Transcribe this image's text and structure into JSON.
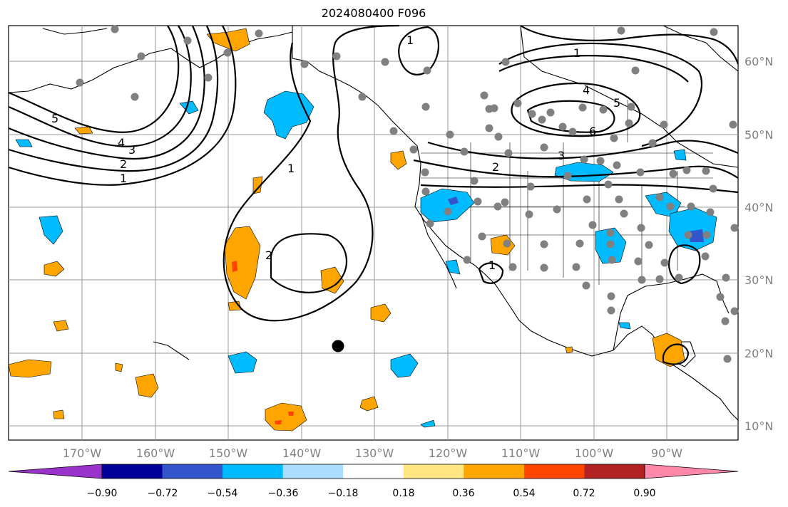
{
  "title": "2024080400 F096",
  "map": {
    "lon_ticks": [
      "170°W",
      "160°W",
      "150°W",
      "140°W",
      "130°W",
      "120°W",
      "110°W",
      "100°W",
      "90°W"
    ],
    "lat_ticks": [
      "60°N",
      "50°N",
      "40°N",
      "30°N",
      "20°N",
      "10°N"
    ],
    "extent": {
      "lon": [
        -180,
        -80
      ],
      "lat": [
        8,
        65
      ]
    },
    "gridlines": true,
    "marker_label": "",
    "contour_labels": [
      "1",
      "2",
      "3",
      "4",
      "5",
      "6",
      "1",
      "2",
      "3",
      "4",
      "5",
      "1",
      "2",
      "1",
      "1"
    ]
  },
  "colorbar": {
    "ticks": [
      "−0.90",
      "−0.72",
      "−0.54",
      "−0.36",
      "−0.18",
      "0.18",
      "0.36",
      "0.54",
      "0.72",
      "0.90"
    ],
    "colors": [
      "#9933cc",
      "#000099",
      "#3355cc",
      "#00bbff",
      "#aaddff",
      "#ffffff",
      "#ffe680",
      "#ffa500",
      "#ff4500",
      "#b22222",
      "#ff88aa"
    ]
  },
  "colors": {
    "blue_fill": "#00bbff",
    "orange_fill": "#ffa500",
    "contour": "#000000",
    "station_dot": "#808080",
    "grid": "#999999"
  }
}
